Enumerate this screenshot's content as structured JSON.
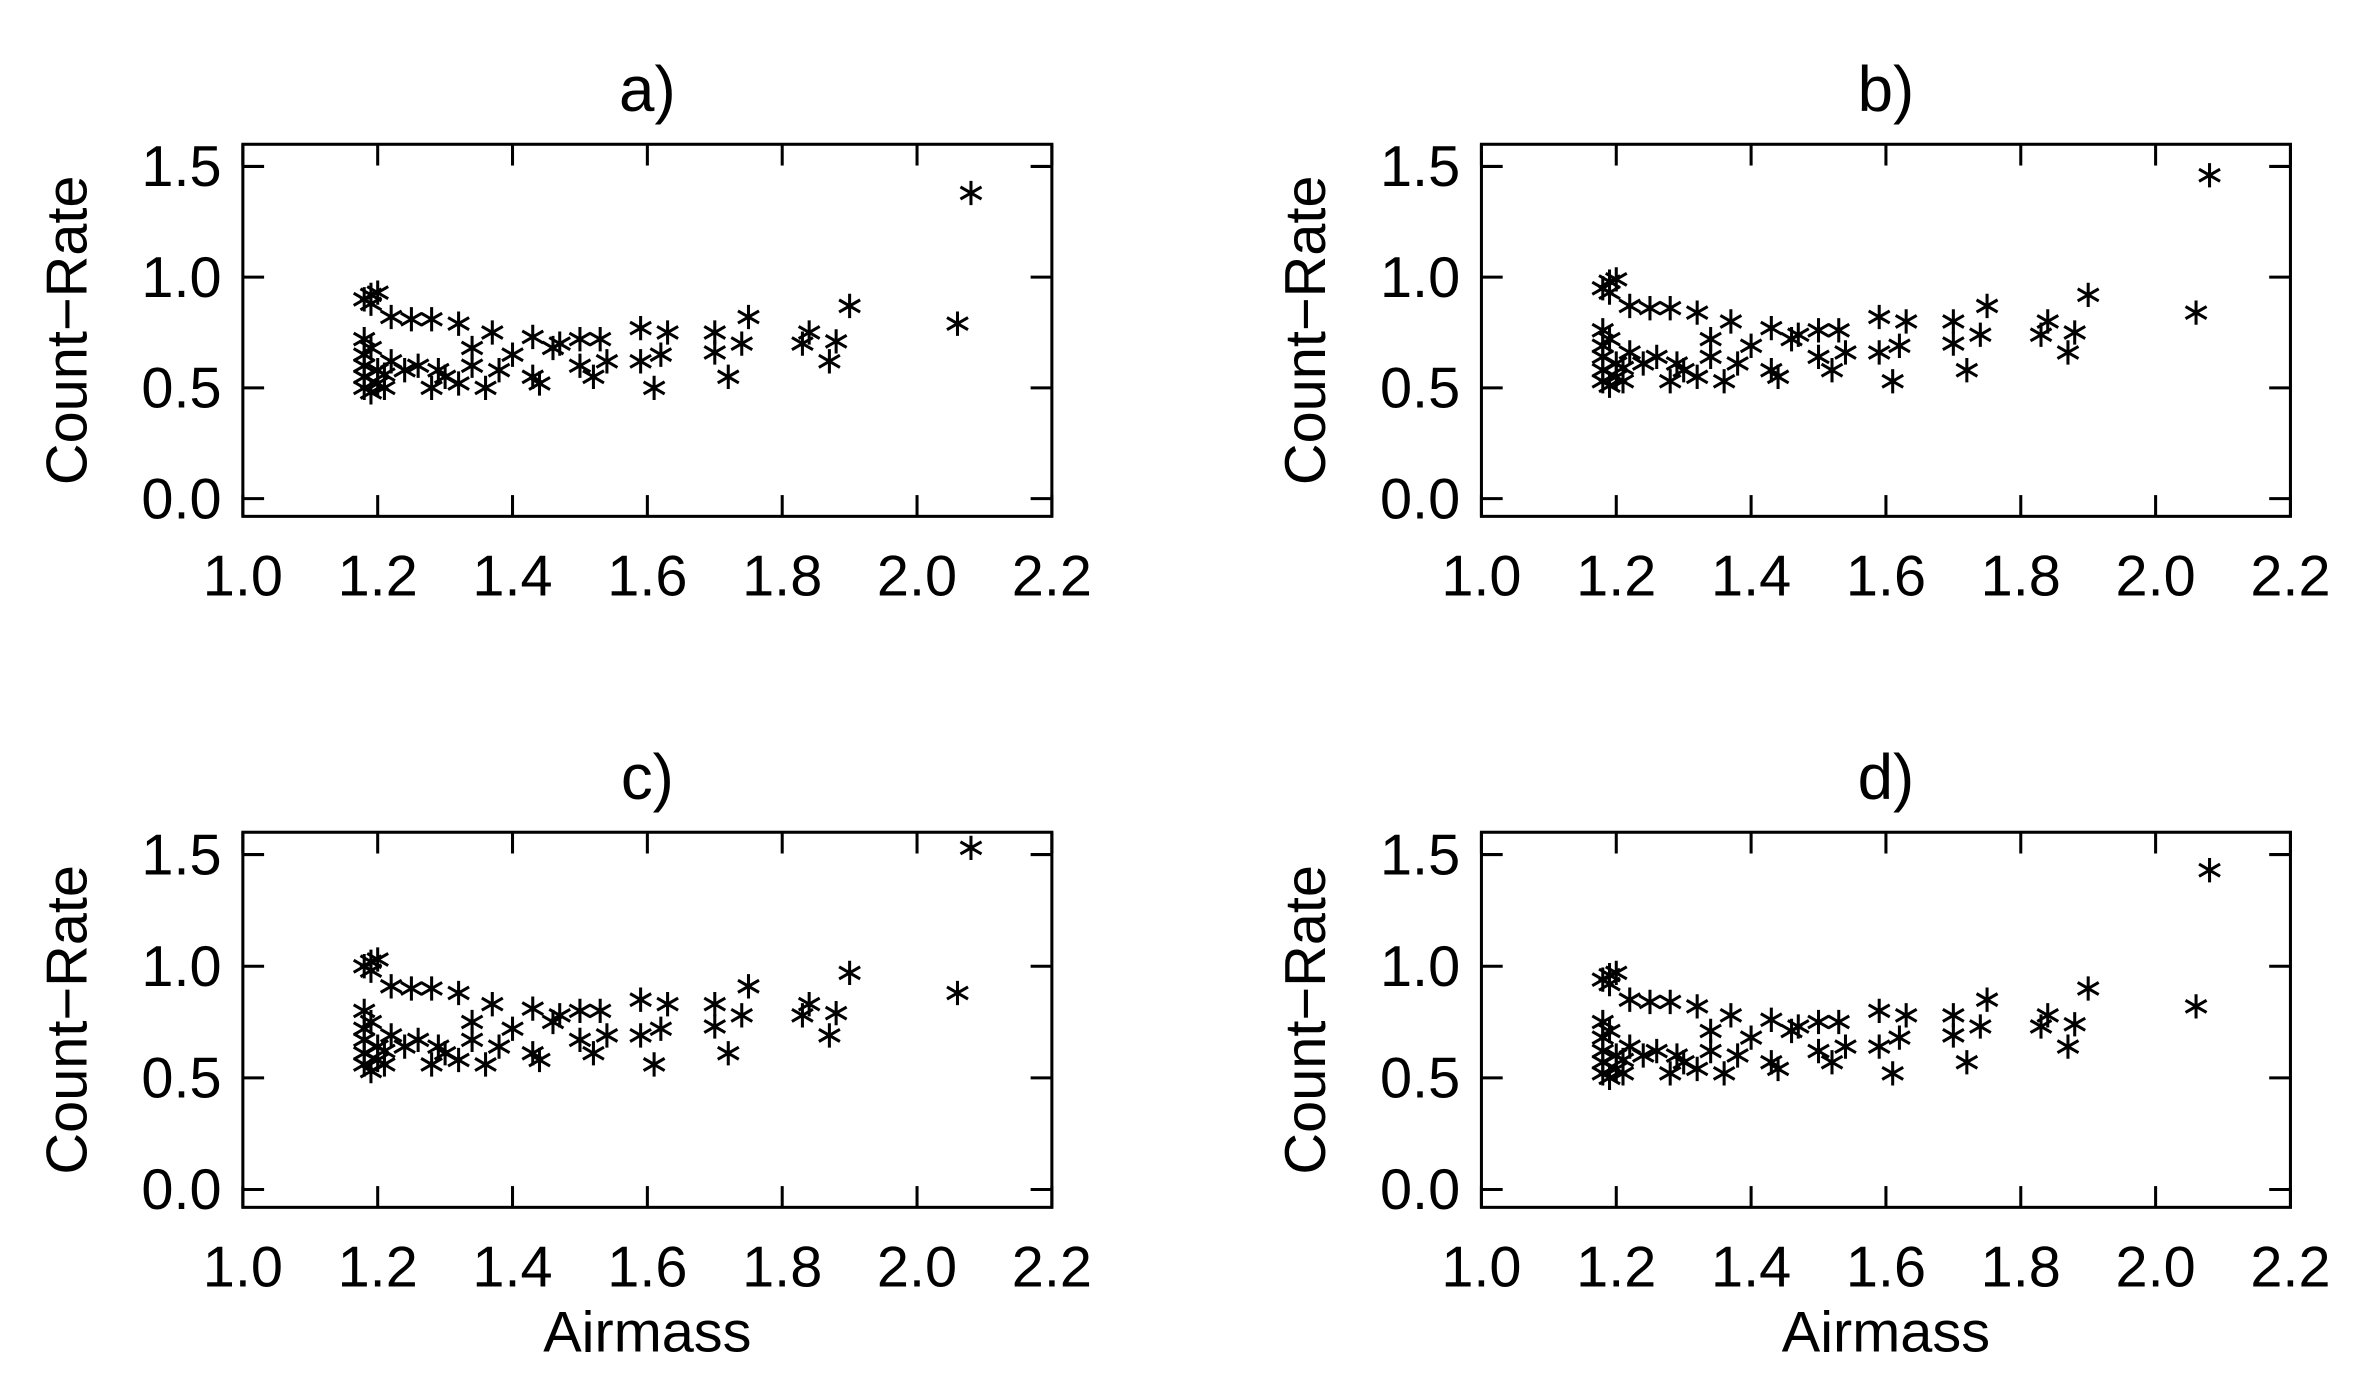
{
  "chart_data": [
    {
      "type": "scatter",
      "title": "a)",
      "ylabel": "Count−Rate",
      "x": [
        1.18,
        1.19,
        1.2,
        1.19,
        1.18,
        1.18,
        1.18,
        1.18,
        1.18,
        1.19,
        1.2,
        1.21,
        1.19,
        1.2,
        1.21,
        1.22,
        1.22,
        1.24,
        1.25,
        1.26,
        1.28,
        1.28,
        1.29,
        1.3,
        1.32,
        1.32,
        1.34,
        1.34,
        1.36,
        1.37,
        1.38,
        1.4,
        1.43,
        1.43,
        1.44,
        1.46,
        1.47,
        1.5,
        1.5,
        1.52,
        1.53,
        1.54,
        1.59,
        1.59,
        1.61,
        1.62,
        1.63,
        1.7,
        1.7,
        1.72,
        1.74,
        1.75,
        1.83,
        1.84,
        1.87,
        1.88,
        1.9,
        2.06,
        2.08
      ],
      "values": [
        0.9,
        0.92,
        0.93,
        0.88,
        0.72,
        0.65,
        0.6,
        0.55,
        0.5,
        0.48,
        0.52,
        0.56,
        0.68,
        0.58,
        0.5,
        0.62,
        0.82,
        0.58,
        0.81,
        0.6,
        0.81,
        0.5,
        0.58,
        0.55,
        0.79,
        0.52,
        0.68,
        0.6,
        0.5,
        0.75,
        0.58,
        0.65,
        0.73,
        0.55,
        0.52,
        0.68,
        0.7,
        0.72,
        0.6,
        0.55,
        0.72,
        0.62,
        0.77,
        0.62,
        0.5,
        0.65,
        0.75,
        0.75,
        0.66,
        0.55,
        0.7,
        0.82,
        0.7,
        0.75,
        0.62,
        0.71,
        0.87,
        0.79,
        1.38
      ],
      "color": "#000000",
      "xlim": [
        1.0,
        2.2
      ],
      "ylim": [
        -0.08,
        1.6
      ],
      "xticks": [
        {
          "value": 1.0,
          "label": "1.0"
        },
        1.2,
        1.4,
        1.6,
        1.8,
        {
          "value": 2.0,
          "label": "2.0"
        },
        2.2
      ],
      "yticks": [
        {
          "value": 0,
          "label": "0.0"
        },
        0.5,
        {
          "value": 1.0,
          "label": "1.0"
        },
        1.5
      ]
    },
    {
      "type": "scatter",
      "title": "b)",
      "ylabel": "Count−Rate",
      "x": [
        1.18,
        1.19,
        1.2,
        1.19,
        1.18,
        1.18,
        1.18,
        1.18,
        1.18,
        1.19,
        1.2,
        1.21,
        1.19,
        1.2,
        1.21,
        1.22,
        1.22,
        1.24,
        1.25,
        1.26,
        1.28,
        1.28,
        1.29,
        1.3,
        1.32,
        1.32,
        1.34,
        1.34,
        1.36,
        1.37,
        1.38,
        1.4,
        1.43,
        1.43,
        1.44,
        1.46,
        1.47,
        1.5,
        1.5,
        1.52,
        1.53,
        1.54,
        1.59,
        1.59,
        1.61,
        1.62,
        1.63,
        1.7,
        1.7,
        1.72,
        1.74,
        1.75,
        1.83,
        1.84,
        1.87,
        1.88,
        1.9,
        2.06,
        2.08
      ],
      "values": [
        0.95,
        0.98,
        0.99,
        0.93,
        0.76,
        0.69,
        0.64,
        0.58,
        0.53,
        0.51,
        0.55,
        0.59,
        0.72,
        0.61,
        0.53,
        0.66,
        0.87,
        0.61,
        0.86,
        0.64,
        0.86,
        0.53,
        0.61,
        0.58,
        0.84,
        0.55,
        0.72,
        0.64,
        0.53,
        0.8,
        0.61,
        0.69,
        0.77,
        0.58,
        0.55,
        0.72,
        0.74,
        0.76,
        0.64,
        0.58,
        0.76,
        0.66,
        0.82,
        0.66,
        0.53,
        0.69,
        0.8,
        0.8,
        0.7,
        0.58,
        0.74,
        0.87,
        0.74,
        0.8,
        0.66,
        0.75,
        0.92,
        0.84,
        1.46
      ],
      "color": "#000000",
      "xlim": [
        1.0,
        2.2
      ],
      "ylim": [
        -0.08,
        1.6
      ],
      "xticks": [
        {
          "value": 1.0,
          "label": "1.0"
        },
        1.2,
        1.4,
        1.6,
        1.8,
        {
          "value": 2.0,
          "label": "2.0"
        },
        2.2
      ],
      "yticks": [
        {
          "value": 0,
          "label": "0.0"
        },
        0.5,
        {
          "value": 1.0,
          "label": "1.0"
        },
        1.5
      ]
    },
    {
      "type": "scatter",
      "title": "c)",
      "xlabel": "Airmass",
      "ylabel": "Count−Rate",
      "x": [
        1.18,
        1.19,
        1.2,
        1.19,
        1.18,
        1.18,
        1.18,
        1.18,
        1.18,
        1.19,
        1.2,
        1.21,
        1.19,
        1.2,
        1.21,
        1.22,
        1.22,
        1.24,
        1.25,
        1.26,
        1.28,
        1.28,
        1.29,
        1.3,
        1.32,
        1.32,
        1.34,
        1.34,
        1.36,
        1.37,
        1.38,
        1.4,
        1.43,
        1.43,
        1.44,
        1.46,
        1.47,
        1.5,
        1.5,
        1.52,
        1.53,
        1.54,
        1.59,
        1.59,
        1.61,
        1.62,
        1.63,
        1.7,
        1.7,
        1.72,
        1.74,
        1.75,
        1.83,
        1.84,
        1.87,
        1.88,
        1.9,
        2.06,
        2.08
      ],
      "values": [
        1.0,
        1.02,
        1.03,
        0.98,
        0.8,
        0.72,
        0.67,
        0.61,
        0.56,
        0.53,
        0.58,
        0.62,
        0.75,
        0.64,
        0.56,
        0.69,
        0.91,
        0.64,
        0.9,
        0.67,
        0.9,
        0.56,
        0.64,
        0.61,
        0.88,
        0.58,
        0.75,
        0.67,
        0.56,
        0.83,
        0.64,
        0.72,
        0.81,
        0.61,
        0.58,
        0.75,
        0.78,
        0.8,
        0.67,
        0.61,
        0.8,
        0.69,
        0.85,
        0.69,
        0.56,
        0.72,
        0.83,
        0.83,
        0.73,
        0.61,
        0.78,
        0.91,
        0.78,
        0.83,
        0.69,
        0.79,
        0.97,
        0.88,
        1.53
      ],
      "color": "#000000",
      "xlim": [
        1.0,
        2.2
      ],
      "ylim": [
        -0.08,
        1.6
      ],
      "xticks": [
        {
          "value": 1.0,
          "label": "1.0"
        },
        1.2,
        1.4,
        1.6,
        1.8,
        {
          "value": 2.0,
          "label": "2.0"
        },
        2.2
      ],
      "yticks": [
        {
          "value": 0,
          "label": "0.0"
        },
        0.5,
        {
          "value": 1.0,
          "label": "1.0"
        },
        1.5
      ]
    },
    {
      "type": "scatter",
      "title": "d)",
      "xlabel": "Airmass",
      "ylabel": "Count−Rate",
      "x": [
        1.18,
        1.19,
        1.2,
        1.19,
        1.18,
        1.18,
        1.18,
        1.18,
        1.18,
        1.19,
        1.2,
        1.21,
        1.19,
        1.2,
        1.21,
        1.22,
        1.22,
        1.24,
        1.25,
        1.26,
        1.28,
        1.28,
        1.29,
        1.3,
        1.32,
        1.32,
        1.34,
        1.34,
        1.36,
        1.37,
        1.38,
        1.4,
        1.43,
        1.43,
        1.44,
        1.46,
        1.47,
        1.5,
        1.5,
        1.52,
        1.53,
        1.54,
        1.59,
        1.59,
        1.61,
        1.62,
        1.63,
        1.7,
        1.7,
        1.72,
        1.74,
        1.75,
        1.83,
        1.84,
        1.87,
        1.88,
        1.9,
        2.06,
        2.08
      ],
      "values": [
        0.94,
        0.96,
        0.97,
        0.92,
        0.75,
        0.68,
        0.62,
        0.57,
        0.52,
        0.5,
        0.54,
        0.58,
        0.71,
        0.6,
        0.52,
        0.64,
        0.85,
        0.6,
        0.84,
        0.62,
        0.84,
        0.52,
        0.6,
        0.57,
        0.82,
        0.54,
        0.71,
        0.62,
        0.52,
        0.78,
        0.6,
        0.68,
        0.76,
        0.57,
        0.54,
        0.71,
        0.73,
        0.75,
        0.62,
        0.57,
        0.75,
        0.64,
        0.8,
        0.64,
        0.52,
        0.68,
        0.78,
        0.78,
        0.69,
        0.57,
        0.73,
        0.85,
        0.73,
        0.78,
        0.64,
        0.74,
        0.9,
        0.82,
        1.43
      ],
      "color": "#000000",
      "xlim": [
        1.0,
        2.2
      ],
      "ylim": [
        -0.08,
        1.6
      ],
      "xticks": [
        {
          "value": 1.0,
          "label": "1.0"
        },
        1.2,
        1.4,
        1.6,
        1.8,
        {
          "value": 2.0,
          "label": "2.0"
        },
        2.2
      ],
      "yticks": [
        {
          "value": 0,
          "label": "0.0"
        },
        0.5,
        {
          "value": 1.0,
          "label": "1.0"
        },
        1.5
      ]
    }
  ]
}
